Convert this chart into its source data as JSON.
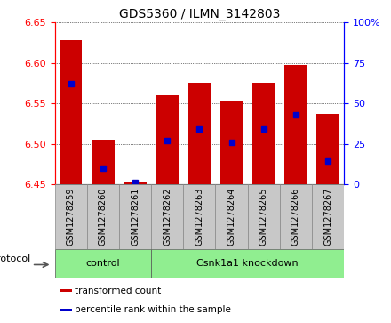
{
  "title": "GDS5360 / ILMN_3142803",
  "samples": [
    "GSM1278259",
    "GSM1278260",
    "GSM1278261",
    "GSM1278262",
    "GSM1278263",
    "GSM1278264",
    "GSM1278265",
    "GSM1278266",
    "GSM1278267"
  ],
  "red_values": [
    6.628,
    6.505,
    6.452,
    6.56,
    6.575,
    6.553,
    6.575,
    6.598,
    6.537
  ],
  "blue_values_pct": [
    62,
    10,
    1,
    27,
    34,
    26,
    34,
    43,
    14
  ],
  "ymin": 6.45,
  "ymax": 6.65,
  "ybase": 6.45,
  "yticks": [
    6.45,
    6.5,
    6.55,
    6.6,
    6.65
  ],
  "right_yticks": [
    0,
    25,
    50,
    75,
    100
  ],
  "bar_color": "#CC0000",
  "blue_color": "#0000CC",
  "bar_width": 0.7,
  "green_color": "#90EE90",
  "gray_color": "#C8C8C8",
  "protocol_label": "protocol",
  "ctrl_count": 3,
  "legend_items": [
    {
      "label": "transformed count",
      "color": "#CC0000"
    },
    {
      "label": "percentile rank within the sample",
      "color": "#0000CC"
    }
  ]
}
